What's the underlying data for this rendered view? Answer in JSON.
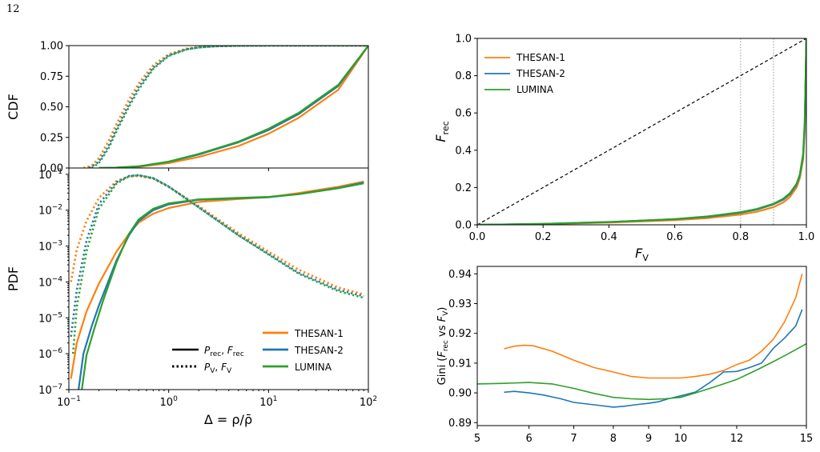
{
  "page_number": "12",
  "colors": {
    "thesan1": "#ff7f0e",
    "thesan2": "#1f77b4",
    "lumina": "#2ca02c"
  },
  "chart_data": [
    {
      "id": "cdf",
      "type": "line",
      "ylabel": "CDF",
      "xscale": "log",
      "xlim": [
        0.1,
        100
      ],
      "ylim": [
        0,
        1
      ],
      "yticks": [
        "0.00",
        "0.25",
        "0.50",
        "0.75",
        "1.00"
      ],
      "series": [
        {
          "name": "THESAN-1",
          "style": "solid",
          "color": "#ff7f0e",
          "x": [
            0.2,
            0.3,
            0.5,
            1,
            2,
            5,
            10,
            20,
            50,
            100
          ],
          "y": [
            0.0,
            0.002,
            0.01,
            0.04,
            0.09,
            0.18,
            0.28,
            0.41,
            0.64,
            1.0
          ]
        },
        {
          "name": "THESAN-2",
          "style": "solid",
          "color": "#1f77b4",
          "x": [
            0.2,
            0.3,
            0.5,
            1,
            2,
            5,
            10,
            20,
            50,
            100
          ],
          "y": [
            0.0,
            0.003,
            0.013,
            0.05,
            0.11,
            0.21,
            0.31,
            0.44,
            0.67,
            1.0
          ]
        },
        {
          "name": "LUMINA",
          "style": "solid",
          "color": "#2ca02c",
          "x": [
            0.2,
            0.3,
            0.5,
            1,
            2,
            5,
            10,
            20,
            50,
            100
          ],
          "y": [
            0.0,
            0.003,
            0.014,
            0.052,
            0.115,
            0.215,
            0.32,
            0.45,
            0.68,
            1.0
          ]
        },
        {
          "name": "THESAN-1",
          "style": "dotted",
          "color": "#ff7f0e",
          "x": [
            0.14,
            0.17,
            0.2,
            0.25,
            0.3,
            0.4,
            0.5,
            0.7,
            1,
            1.5,
            2,
            3,
            5,
            10,
            100
          ],
          "y": [
            0.0,
            0.02,
            0.08,
            0.22,
            0.36,
            0.56,
            0.69,
            0.84,
            0.93,
            0.975,
            0.99,
            0.996,
            0.999,
            1.0,
            1.0
          ]
        },
        {
          "name": "THESAN-2",
          "style": "dotted",
          "color": "#1f77b4",
          "x": [
            0.16,
            0.2,
            0.25,
            0.3,
            0.4,
            0.5,
            0.7,
            1,
            1.5,
            2,
            3,
            5,
            10,
            100
          ],
          "y": [
            0.0,
            0.05,
            0.18,
            0.32,
            0.52,
            0.66,
            0.82,
            0.92,
            0.97,
            0.985,
            0.995,
            0.999,
            1.0,
            1.0
          ]
        },
        {
          "name": "LUMINA",
          "style": "dotted",
          "color": "#2ca02c",
          "x": [
            0.17,
            0.2,
            0.25,
            0.3,
            0.4,
            0.5,
            0.7,
            1,
            1.5,
            2,
            3,
            5,
            10,
            100
          ],
          "y": [
            0.0,
            0.04,
            0.16,
            0.3,
            0.5,
            0.64,
            0.81,
            0.915,
            0.968,
            0.985,
            0.995,
            0.999,
            1.0,
            1.0
          ]
        }
      ]
    },
    {
      "id": "pdf",
      "type": "line",
      "ylabel": "PDF",
      "xlabel": "Δ = ρ/ρ̄",
      "xscale": "log",
      "yscale": "log",
      "xlim": [
        0.1,
        100
      ],
      "ylim": [
        1e-07,
        0.15
      ],
      "xticks": [
        {
          "value": 0.1,
          "base": "10",
          "exp": "−1"
        },
        {
          "value": 1,
          "base": "10",
          "exp": "0"
        },
        {
          "value": 10,
          "base": "10",
          "exp": "1"
        },
        {
          "value": 100,
          "base": "10",
          "exp": "2"
        }
      ],
      "yticks": [
        {
          "value": 1e-07,
          "base": "10",
          "exp": "−7"
        },
        {
          "value": 1e-06,
          "base": "10",
          "exp": "−6"
        },
        {
          "value": 1e-05,
          "base": "10",
          "exp": "−5"
        },
        {
          "value": 0.0001,
          "base": "10",
          "exp": "−4"
        },
        {
          "value": 0.001,
          "base": "10",
          "exp": "−3"
        },
        {
          "value": 0.01,
          "base": "10",
          "exp": "−2"
        },
        {
          "value": 0.1,
          "base": "10",
          "exp": "−1"
        }
      ],
      "series": [
        {
          "name": "THESAN-1",
          "style": "solid",
          "color": "#ff7f0e",
          "x": [
            0.105,
            0.12,
            0.15,
            0.2,
            0.3,
            0.4,
            0.5,
            0.7,
            1,
            2,
            5,
            10,
            20,
            50,
            90
          ],
          "y": [
            2e-07,
            2e-06,
            1.5e-05,
            9e-05,
            0.0007,
            0.0022,
            0.0045,
            0.008,
            0.0115,
            0.017,
            0.0205,
            0.023,
            0.03,
            0.045,
            0.063
          ]
        },
        {
          "name": "THESAN-2",
          "style": "solid",
          "color": "#1f77b4",
          "x": [
            0.125,
            0.14,
            0.17,
            0.2,
            0.3,
            0.4,
            0.5,
            0.7,
            1,
            2,
            5,
            10,
            20,
            50,
            90
          ],
          "y": [
            1e-07,
            1e-06,
            6e-06,
            2.2e-05,
            0.0004,
            0.002,
            0.005,
            0.01,
            0.0145,
            0.0195,
            0.0215,
            0.023,
            0.028,
            0.042,
            0.059
          ]
        },
        {
          "name": "LUMINA",
          "style": "solid",
          "color": "#2ca02c",
          "x": [
            0.135,
            0.15,
            0.18,
            0.22,
            0.3,
            0.4,
            0.5,
            0.7,
            1,
            2,
            5,
            10,
            20,
            50,
            90
          ],
          "y": [
            1e-07,
            9e-07,
            5e-06,
            3e-05,
            0.00035,
            0.0022,
            0.0055,
            0.011,
            0.0155,
            0.02,
            0.022,
            0.0235,
            0.028,
            0.041,
            0.056
          ]
        },
        {
          "name": "THESAN-1",
          "style": "dotted",
          "color": "#ff7f0e",
          "x": [
            0.105,
            0.12,
            0.15,
            0.2,
            0.3,
            0.4,
            0.5,
            0.7,
            1,
            2,
            5,
            10,
            20,
            50,
            90
          ],
          "y": [
            0.0001,
            0.0008,
            0.005,
            0.022,
            0.065,
            0.087,
            0.09,
            0.075,
            0.045,
            0.013,
            0.0023,
            0.0007,
            0.00022,
            7e-05,
            4.5e-05
          ]
        },
        {
          "name": "THESAN-2",
          "style": "dotted",
          "color": "#1f77b4",
          "x": [
            0.105,
            0.12,
            0.15,
            0.2,
            0.3,
            0.4,
            0.5,
            0.7,
            1,
            2,
            5,
            10,
            20,
            50,
            90
          ],
          "y": [
            3e-06,
            6e-05,
            0.0014,
            0.015,
            0.06,
            0.09,
            0.095,
            0.078,
            0.045,
            0.012,
            0.002,
            0.0006,
            0.00018,
            6e-05,
            4e-05
          ]
        },
        {
          "name": "LUMINA",
          "style": "dotted",
          "color": "#2ca02c",
          "x": [
            0.11,
            0.12,
            0.15,
            0.2,
            0.3,
            0.4,
            0.5,
            0.7,
            1,
            2,
            5,
            10,
            20,
            50,
            90
          ],
          "y": [
            1e-06,
            2e-05,
            0.0007,
            0.011,
            0.055,
            0.088,
            0.094,
            0.078,
            0.046,
            0.012,
            0.002,
            0.00058,
            0.00017,
            5.5e-05,
            3.6e-05
          ]
        }
      ],
      "legend": {
        "line_styles": [
          {
            "style": "solid",
            "label": "P_rec, F_rec",
            "p_main": "P",
            "p_sub": "rec",
            "f_main": "F",
            "f_sub": "rec"
          },
          {
            "style": "dotted",
            "label": "P_V, F_V",
            "p_main": "P",
            "p_sub": "V",
            "f_main": "F",
            "f_sub": "V"
          }
        ],
        "models": [
          "THESAN-1",
          "THESAN-2",
          "LUMINA"
        ],
        "placement": "lower-right"
      }
    },
    {
      "id": "lorenz",
      "type": "line",
      "xlabel_main": "F",
      "xlabel_sub": "V",
      "ylabel_main": "F",
      "ylabel_sub": "rec",
      "xlim": [
        0,
        1
      ],
      "ylim": [
        0,
        1
      ],
      "xticks": [
        "0.0",
        "0.2",
        "0.4",
        "0.6",
        "0.8",
        "1.0"
      ],
      "yticks": [
        "0.0",
        "0.2",
        "0.4",
        "0.6",
        "0.8",
        "1.0"
      ],
      "vlines": [
        0.8,
        0.9
      ],
      "diagonal": true,
      "legend": {
        "entries": [
          "THESAN-1",
          "THESAN-2",
          "LUMINA"
        ],
        "placement": "top-left"
      },
      "series": [
        {
          "name": "THESAN-1",
          "color": "#ff7f0e",
          "x": [
            0,
            0.2,
            0.4,
            0.6,
            0.7,
            0.8,
            0.85,
            0.9,
            0.93,
            0.95,
            0.97,
            0.98,
            0.99,
            0.995,
            1.0
          ],
          "y": [
            0,
            0.004,
            0.012,
            0.025,
            0.036,
            0.055,
            0.07,
            0.095,
            0.12,
            0.15,
            0.2,
            0.25,
            0.35,
            0.5,
            1.0
          ]
        },
        {
          "name": "THESAN-2",
          "color": "#1f77b4",
          "x": [
            0,
            0.2,
            0.4,
            0.6,
            0.7,
            0.8,
            0.85,
            0.9,
            0.93,
            0.95,
            0.97,
            0.98,
            0.99,
            0.995,
            1.0
          ],
          "y": [
            0,
            0.005,
            0.015,
            0.03,
            0.043,
            0.065,
            0.082,
            0.11,
            0.135,
            0.165,
            0.215,
            0.265,
            0.37,
            0.53,
            1.0
          ]
        },
        {
          "name": "LUMINA",
          "color": "#2ca02c",
          "x": [
            0,
            0.2,
            0.4,
            0.6,
            0.7,
            0.8,
            0.85,
            0.9,
            0.93,
            0.95,
            0.97,
            0.98,
            0.99,
            0.995,
            1.0
          ],
          "y": [
            0,
            0.005,
            0.015,
            0.031,
            0.045,
            0.068,
            0.085,
            0.113,
            0.14,
            0.17,
            0.22,
            0.27,
            0.38,
            0.55,
            1.0
          ]
        }
      ]
    },
    {
      "id": "gini",
      "type": "line",
      "ylabel_prefix": "Gini (",
      "ylabel_a_main": "F",
      "ylabel_a_sub": "rec",
      "ylabel_mid": " vs ",
      "ylabel_b_main": "F",
      "ylabel_b_sub": "V",
      "ylabel_suffix": ")",
      "xlim": [
        5,
        15
      ],
      "ylim": [
        0.889,
        0.9425
      ],
      "xticks": [
        5,
        6,
        7,
        8,
        9,
        10,
        12,
        15
      ],
      "yticks": [
        "0.89",
        "0.90",
        "0.91",
        "0.92",
        "0.93",
        "0.94"
      ],
      "series": [
        {
          "name": "THESAN-1",
          "color": "#ff7f0e",
          "x": [
            5.5,
            5.7,
            5.9,
            6.1,
            6.5,
            7,
            7.5,
            8,
            8.5,
            9,
            9.5,
            10,
            10.5,
            11,
            11.5,
            12,
            12.5,
            13,
            13.5,
            14,
            14.5,
            14.8
          ],
          "y": [
            0.9148,
            0.9157,
            0.916,
            0.9158,
            0.914,
            0.911,
            0.9085,
            0.907,
            0.9055,
            0.905,
            0.905,
            0.905,
            0.9055,
            0.9063,
            0.9075,
            0.9095,
            0.911,
            0.914,
            0.918,
            0.924,
            0.932,
            0.94
          ]
        },
        {
          "name": "THESAN-2",
          "color": "#1f77b4",
          "x": [
            5.5,
            5.7,
            6,
            6.3,
            6.7,
            7,
            7.5,
            8,
            8.3,
            8.6,
            9,
            9.3,
            9.6,
            10,
            10.5,
            11,
            11.5,
            12,
            12.5,
            13,
            13.5,
            14,
            14.5,
            14.8
          ],
          "y": [
            0.9002,
            0.9005,
            0.9,
            0.8993,
            0.898,
            0.8968,
            0.896,
            0.8952,
            0.8955,
            0.896,
            0.8965,
            0.897,
            0.898,
            0.899,
            0.9003,
            0.9035,
            0.907,
            0.9072,
            0.9085,
            0.91,
            0.915,
            0.9185,
            0.9225,
            0.928
          ]
        },
        {
          "name": "LUMINA",
          "color": "#2ca02c",
          "x": [
            5,
            5.5,
            6,
            6.5,
            7,
            7.5,
            8,
            8.5,
            9,
            9.5,
            10,
            10.5,
            11,
            11.5,
            12,
            12.5,
            13,
            13.5,
            14,
            14.5,
            15
          ],
          "y": [
            0.903,
            0.9032,
            0.9035,
            0.903,
            0.9015,
            0.8998,
            0.8985,
            0.898,
            0.8978,
            0.898,
            0.8985,
            0.9,
            0.9015,
            0.903,
            0.9045,
            0.9065,
            0.9085,
            0.9105,
            0.9125,
            0.9145,
            0.9165
          ]
        }
      ]
    }
  ]
}
